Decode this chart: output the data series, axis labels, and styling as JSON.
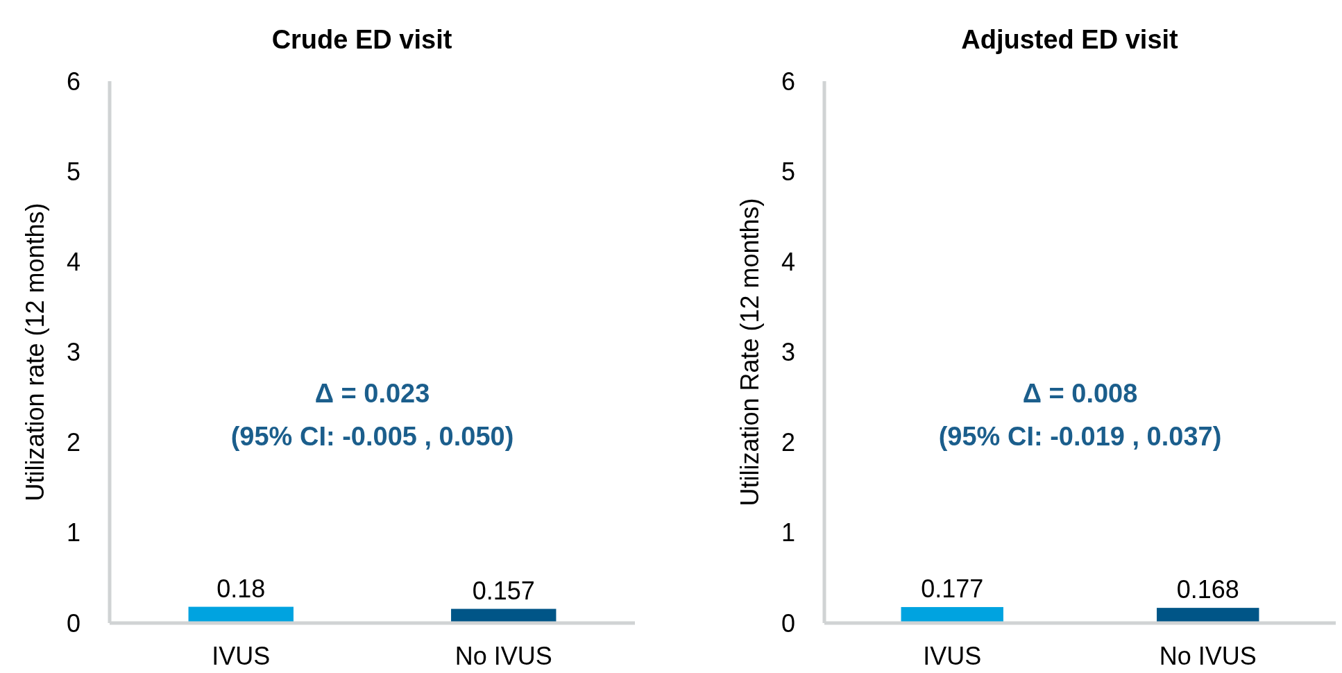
{
  "chart_data": [
    {
      "type": "bar",
      "title": "Crude ED visit",
      "ylabel": "Utilization rate (12 months)",
      "categories": [
        "IVUS",
        "No IVUS"
      ],
      "values": [
        0.18,
        0.157
      ],
      "colors": [
        "#00a3e0",
        "#005587"
      ],
      "ylim": [
        0,
        6
      ],
      "yticks": [
        0,
        1,
        2,
        3,
        4,
        5,
        6
      ],
      "data_labels": true,
      "annotations": [
        "Δ = 0.023\n(95% CI: -0.005 , 0.050)"
      ]
    },
    {
      "type": "bar",
      "title": "Adjusted ED visit",
      "ylabel": "Utilization Rate (12 months)",
      "categories": [
        "IVUS",
        "No IVUS"
      ],
      "values": [
        0.177,
        0.168
      ],
      "colors": [
        "#00a3e0",
        "#005587"
      ],
      "ylim": [
        0,
        6
      ],
      "yticks": [
        0,
        1,
        2,
        3,
        4,
        5,
        6
      ],
      "data_labels": true,
      "annotations": [
        "Δ = 0.008\n(95% CI: -0.019 , 0.037)"
      ]
    }
  ]
}
